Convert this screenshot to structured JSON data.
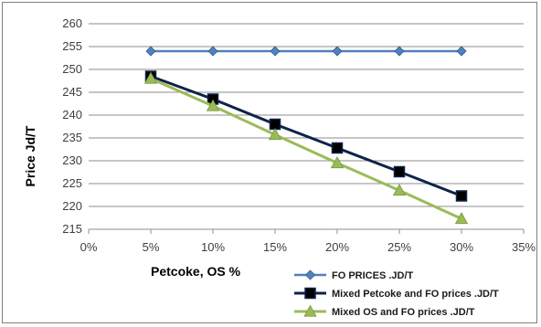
{
  "chart_data": {
    "type": "line",
    "xlabel": "Petcoke, OS  %",
    "ylabel": "Price  Jd/T",
    "xlim": [
      0,
      35
    ],
    "ylim": [
      215,
      260
    ],
    "x_ticks": [
      "0%",
      "5%",
      "10%",
      "15%",
      "20%",
      "25%",
      "30%",
      "35%"
    ],
    "y_ticks": [
      "215",
      "220",
      "225",
      "230",
      "235",
      "240",
      "245",
      "250",
      "255",
      "260"
    ],
    "grid": "horizontal",
    "legend_position": "bottom-right",
    "x": [
      5,
      10,
      15,
      20,
      25,
      30
    ],
    "series": [
      {
        "name": "FO PRICES .JD/T",
        "color": "#4f81bd",
        "marker": "diamond",
        "values": [
          254,
          254,
          254,
          254,
          254,
          254
        ]
      },
      {
        "name": "Mixed  Petcoke and FO prices .JD/T",
        "color": "#0f2349",
        "marker": "square",
        "values": [
          248.5,
          243.5,
          238,
          232.8,
          227.6,
          222.3
        ]
      },
      {
        "name": "Mixed  OS and FO prices .JD/T",
        "color": "#9bbb59",
        "marker": "triangle",
        "values": [
          248,
          242,
          235.7,
          229.5,
          223.5,
          217.3
        ]
      }
    ]
  }
}
